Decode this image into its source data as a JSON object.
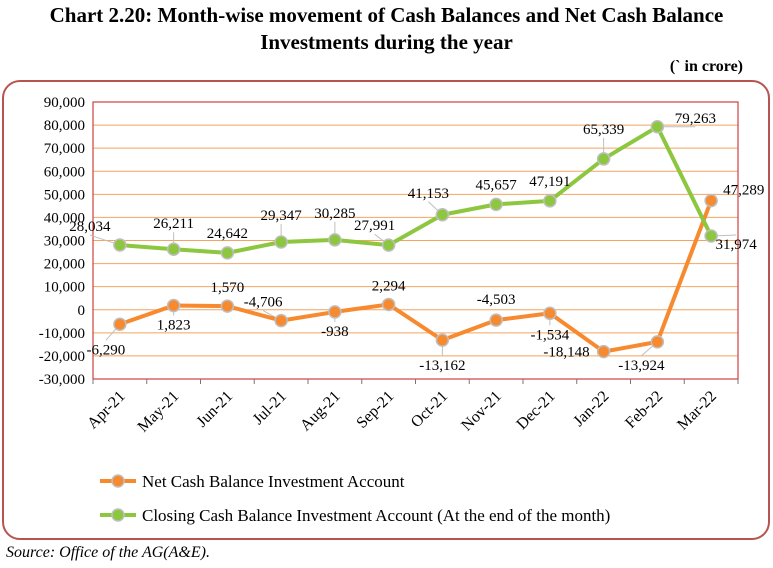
{
  "header": {
    "title_line1": "Chart 2.20: Month-wise movement of Cash Balances and Net Cash Balance",
    "title_line2": "Investments during the year",
    "unit": "(` in crore)"
  },
  "footer": {
    "source": "Source: Office of the AG(A&E)."
  },
  "chart_data": {
    "type": "line",
    "title": "Chart 2.20: Month-wise movement of Cash Balances and Net Cash Balance Investments during the year",
    "categories": [
      "Apr-21",
      "May-21",
      "Jun-21",
      "Jul-21",
      "Aug-21",
      "Sep-21",
      "Oct-21",
      "Nov-21",
      "Dec-21",
      "Jan-22",
      "Feb-22",
      "Mar-22"
    ],
    "ylim": [
      -30000,
      90000
    ],
    "yticks": [
      -30000,
      -20000,
      -10000,
      0,
      10000,
      20000,
      30000,
      40000,
      50000,
      60000,
      70000,
      80000,
      90000
    ],
    "ytick_labels": [
      "-30,000",
      "-20,000",
      "-10,000",
      "0",
      "10,000",
      "20,000",
      "30,000",
      "40,000",
      "50,000",
      "60,000",
      "70,000",
      "80,000",
      "90,000"
    ],
    "grid": true,
    "legend_position": "bottom",
    "series": [
      {
        "name": "Net Cash Balance Investment Account",
        "color": "#f7892f",
        "values": [
          -6290,
          1823,
          1570,
          -4706,
          -938,
          2294,
          -13162,
          -4503,
          -1534,
          -18148,
          -13924,
          47289
        ],
        "labels": [
          "-6,290",
          "1,823",
          "1,570",
          "-4,706",
          "-938",
          "2,294",
          "-13,162",
          "-4,503",
          "-1,534",
          "-18,148",
          "-13,924",
          "47,289"
        ]
      },
      {
        "name": "Closing Cash Balance Investment Account (At the end of the month)",
        "color": "#8dc63f",
        "values": [
          28034,
          26211,
          24642,
          29347,
          30285,
          27991,
          41153,
          45657,
          47191,
          65339,
          79263,
          31974
        ],
        "labels": [
          "28,034",
          "26,211",
          "24,642",
          "29,347",
          "30,285",
          "27,991",
          "41,153",
          "45,657",
          "47,191",
          "65,339",
          "79,263",
          "31,974"
        ]
      }
    ],
    "colors": {
      "grid": "#f4a460",
      "plot_border": "#d04040",
      "frame_border": "#b85450"
    }
  }
}
